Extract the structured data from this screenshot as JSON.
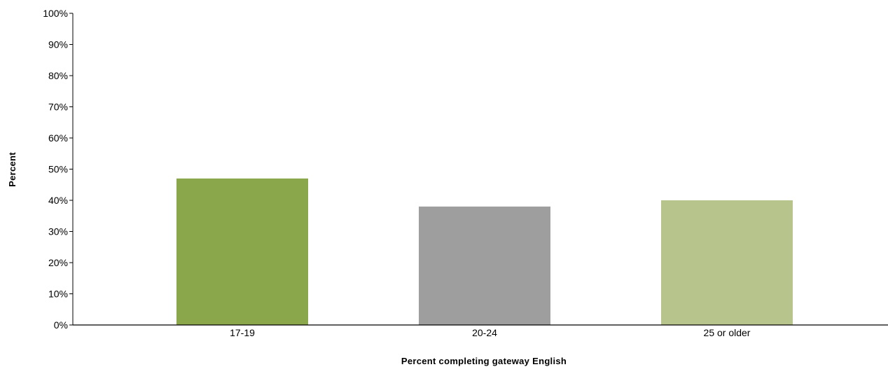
{
  "chart_data": {
    "type": "bar",
    "title": "",
    "xlabel": "Percent completing gateway English",
    "ylabel": "Percent",
    "categories": [
      "17-19",
      "20-24",
      "25 or older"
    ],
    "values": [
      47,
      38,
      40
    ],
    "colors": [
      "#8aa74c",
      "#9e9e9e",
      "#b7c48b"
    ],
    "ylim": [
      0,
      100
    ],
    "yticks": [
      0,
      10,
      20,
      30,
      40,
      50,
      60,
      70,
      80,
      90,
      100
    ],
    "ytick_labels": [
      "0%",
      "10%",
      "20%",
      "30%",
      "40%",
      "50%",
      "60%",
      "70%",
      "80%",
      "90%",
      "100%"
    ],
    "grid": false,
    "legend": "none"
  }
}
